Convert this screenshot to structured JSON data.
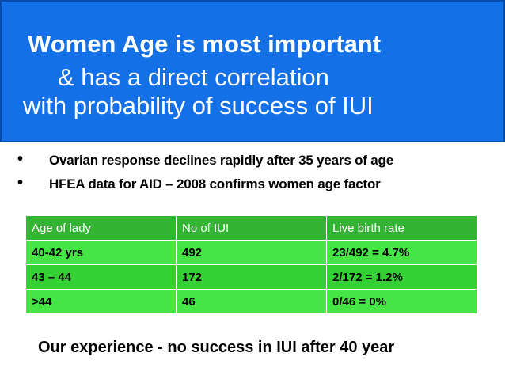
{
  "title": {
    "line1": "Women Age is most important",
    "line2": "& has a direct correlation",
    "line3": "with probability of success of IUI"
  },
  "bullets": [
    {
      "marker": "•",
      "text": "Ovarian response declines rapidly after 35 years of age"
    },
    {
      "marker": "•",
      "text": "HFEA data for AID –  2008 confirms women age factor"
    }
  ],
  "table": {
    "headers": [
      "Age of lady",
      "No of IUI",
      "Live birth rate"
    ],
    "rows": [
      [
        "40-42 yrs",
        "492",
        "23/492 = 4.7%"
      ],
      [
        "43 – 44",
        "172",
        "2/172 = 1.2%"
      ],
      [
        ">44",
        "46",
        "0/46 = 0%"
      ]
    ]
  },
  "footer": "Our experience - no success in IUI after 40 year",
  "colors": {
    "title_bg": "#1470e6",
    "table_header_bg": "#33b533",
    "table_row_bg": "#45e545"
  }
}
